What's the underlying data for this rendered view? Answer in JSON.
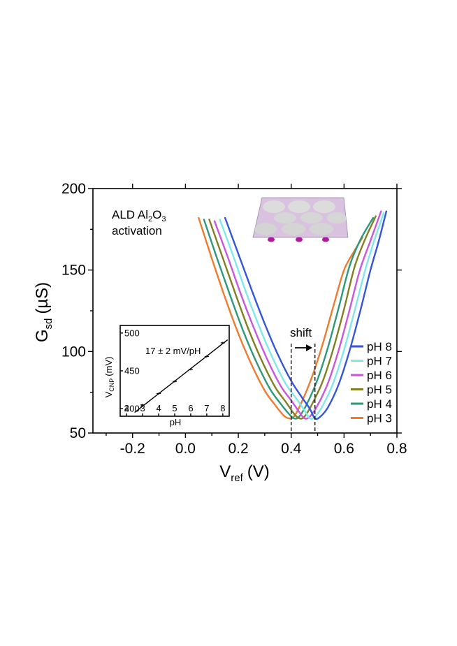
{
  "chart_data": [
    {
      "type": "line",
      "xlabel": "V",
      "xlabel_sub": "ref",
      "xlabel_unit": "(V)",
      "ylabel": "G",
      "ylabel_sub": "sd",
      "ylabel_unit": "(µS)",
      "xlim": [
        -0.35,
        0.8
      ],
      "ylim": [
        50,
        200
      ],
      "x_ticks": [
        -0.2,
        0.0,
        0.2,
        0.4,
        0.6,
        0.8
      ],
      "x_tick_labels": [
        "-0.2",
        "0.0",
        "0.2",
        "0.4",
        "0.6",
        "0.8"
      ],
      "y_ticks": [
        50,
        100,
        150,
        200
      ],
      "y_tick_labels": [
        "50",
        "100",
        "150",
        "200"
      ],
      "legend_position": "bottom-right",
      "series": [
        {
          "name": "pH 8",
          "color": "#3355dd",
          "x": [
            0.15,
            0.2,
            0.25,
            0.3,
            0.35,
            0.4,
            0.44,
            0.47,
            0.49,
            0.51,
            0.54,
            0.58,
            0.62,
            0.66,
            0.7,
            0.73,
            0.76
          ],
          "y": [
            182,
            160,
            138,
            117,
            98,
            82,
            72,
            65,
            59,
            60,
            66,
            80,
            100,
            124,
            150,
            167,
            186
          ]
        },
        {
          "name": "pH 7",
          "color": "#7fe8e8",
          "x": [
            0.13,
            0.18,
            0.23,
            0.28,
            0.33,
            0.38,
            0.42,
            0.45,
            0.47,
            0.49,
            0.52,
            0.56,
            0.6,
            0.64,
            0.68,
            0.71,
            0.75
          ],
          "y": [
            181,
            159,
            136,
            115,
            96,
            80,
            71,
            64,
            59,
            60,
            67,
            81,
            101,
            125,
            150,
            166,
            185
          ]
        },
        {
          "name": "pH 6",
          "color": "#cc55dd",
          "x": [
            0.11,
            0.16,
            0.21,
            0.26,
            0.31,
            0.36,
            0.4,
            0.43,
            0.45,
            0.47,
            0.5,
            0.54,
            0.58,
            0.62,
            0.66,
            0.7,
            0.74
          ],
          "y": [
            180,
            158,
            135,
            114,
            95,
            79,
            70,
            63,
            59,
            60,
            67,
            81,
            101,
            125,
            150,
            168,
            186
          ]
        },
        {
          "name": "pH 5",
          "color": "#808020",
          "x": [
            0.09,
            0.14,
            0.19,
            0.24,
            0.29,
            0.34,
            0.38,
            0.41,
            0.43,
            0.45,
            0.48,
            0.52,
            0.56,
            0.6,
            0.64,
            0.68,
            0.72
          ],
          "y": [
            181,
            158,
            135,
            113,
            94,
            78,
            69,
            62,
            59,
            60,
            68,
            82,
            102,
            126,
            152,
            169,
            183
          ]
        },
        {
          "name": "pH 4",
          "color": "#2a9a7a",
          "x": [
            0.07,
            0.12,
            0.17,
            0.22,
            0.27,
            0.32,
            0.36,
            0.39,
            0.41,
            0.43,
            0.46,
            0.5,
            0.54,
            0.58,
            0.62,
            0.66,
            0.71
          ],
          "y": [
            181,
            157,
            134,
            112,
            93,
            77,
            68,
            62,
            59,
            60,
            68,
            83,
            103,
            127,
            152,
            168,
            182
          ]
        },
        {
          "name": "pH 3",
          "color": "#f07a30",
          "x": [
            0.05,
            0.1,
            0.15,
            0.2,
            0.25,
            0.3,
            0.34,
            0.37,
            0.39,
            0.41,
            0.44,
            0.48,
            0.52,
            0.56,
            0.6,
            0.64,
            0.67
          ],
          "y": [
            182,
            157,
            133,
            111,
            92,
            76,
            67,
            61,
            59,
            60,
            69,
            85,
            105,
            128,
            150,
            162,
            170
          ]
        }
      ],
      "annotations": [
        {
          "text": "ALD Al"
        },
        {
          "text": "2"
        },
        {
          "text": "O"
        },
        {
          "text": "3"
        },
        {
          "text": "activation"
        },
        {
          "text": "shift"
        }
      ],
      "shift_lines_x": [
        0.4,
        0.49
      ]
    },
    {
      "type": "scatter",
      "xlabel": "pH",
      "ylabel": "V",
      "ylabel_sub": "CNP",
      "ylabel_unit": "(mV)",
      "xlim": [
        1.6,
        8.4
      ],
      "ylim": [
        390,
        510
      ],
      "x_ticks": [
        2,
        3,
        4,
        5,
        6,
        7,
        8
      ],
      "x_tick_labels": [
        "2",
        "3",
        "4",
        "5",
        "6",
        "7",
        "8"
      ],
      "y_ticks": [
        400,
        450,
        500
      ],
      "y_tick_labels": [
        "400",
        "450",
        "500"
      ],
      "annotation": "17 ± 2 mV/pH",
      "points": {
        "x": [
          3,
          4,
          5,
          6,
          7,
          8
        ],
        "y": [
          405,
          420,
          436,
          452,
          469,
          487
        ]
      },
      "fit": {
        "x": [
          2.5,
          8.3
        ],
        "y": [
          395,
          491
        ]
      }
    }
  ]
}
